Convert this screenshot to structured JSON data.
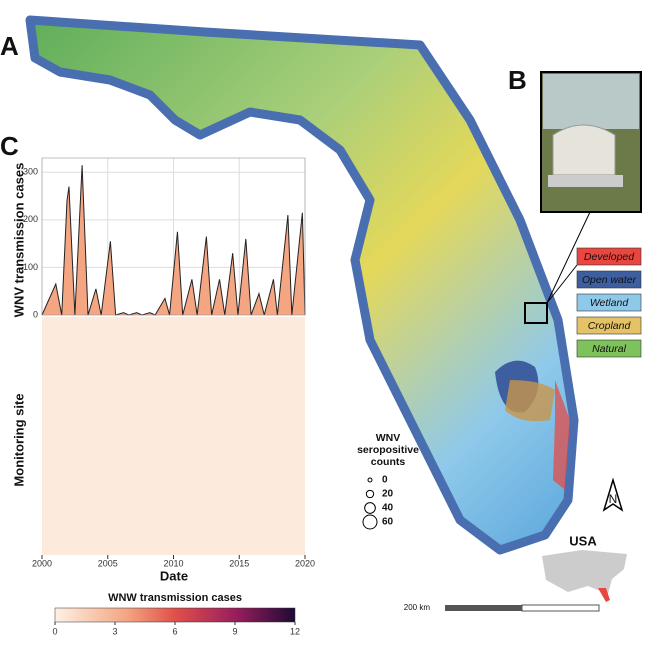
{
  "panels": [
    "A",
    "B",
    "C"
  ],
  "land_cover": [
    {
      "label": "Developed",
      "color": "#e8463e"
    },
    {
      "label": "Open water",
      "color": "#3d5f9f"
    },
    {
      "label": "Wetland",
      "color": "#8fc9ea"
    },
    {
      "label": "Cropland",
      "color": "#e6c266"
    },
    {
      "label": "Natural",
      "color": "#7dc25a"
    }
  ],
  "bubble_legend": {
    "title": "WNV seropositive counts",
    "sizes": [
      0,
      20,
      40,
      60
    ]
  },
  "inset_label": "USA",
  "scale_label": "200 km",
  "north_label": "N",
  "chart_data": {
    "type": "area",
    "ylabel": "WNV transmission cases",
    "xlabel": "Date",
    "heatmap_ylabel": "Monitoring site",
    "x": [
      2000,
      2001.05,
      2001.5,
      2001.9,
      2002.05,
      2002.5,
      2003.05,
      2003.5,
      2004.1,
      2004.5,
      2005.2,
      2005.6,
      2006.2,
      2006.6,
      2007.2,
      2007.6,
      2008.2,
      2008.6,
      2009.35,
      2009.7,
      2010.3,
      2010.7,
      2011.4,
      2011.8,
      2012.5,
      2012.9,
      2013.5,
      2013.9,
      2014.5,
      2014.9,
      2015.5,
      2015.9,
      2016.5,
      2016.9,
      2017.6,
      2017.9,
      2018.7,
      2019.0,
      2019.8,
      2020
    ],
    "values": [
      0,
      65,
      0,
      240,
      270,
      0,
      315,
      0,
      55,
      0,
      155,
      0,
      5,
      0,
      5,
      0,
      5,
      0,
      35,
      0,
      175,
      0,
      75,
      0,
      165,
      0,
      75,
      0,
      130,
      0,
      160,
      0,
      45,
      0,
      75,
      0,
      210,
      0,
      215,
      0
    ],
    "color": "#f4a582",
    "xlim": [
      2000,
      2020
    ],
    "ylim": [
      0,
      330
    ],
    "xticks": [
      2000,
      2005,
      2010,
      2015,
      2020
    ],
    "yticks": [
      0,
      100,
      200,
      300
    ],
    "grid": true
  },
  "colorbar": {
    "title": "WNW transmission cases",
    "range": [
      0,
      12
    ],
    "ticks": [
      0,
      3,
      6,
      9,
      12
    ]
  }
}
